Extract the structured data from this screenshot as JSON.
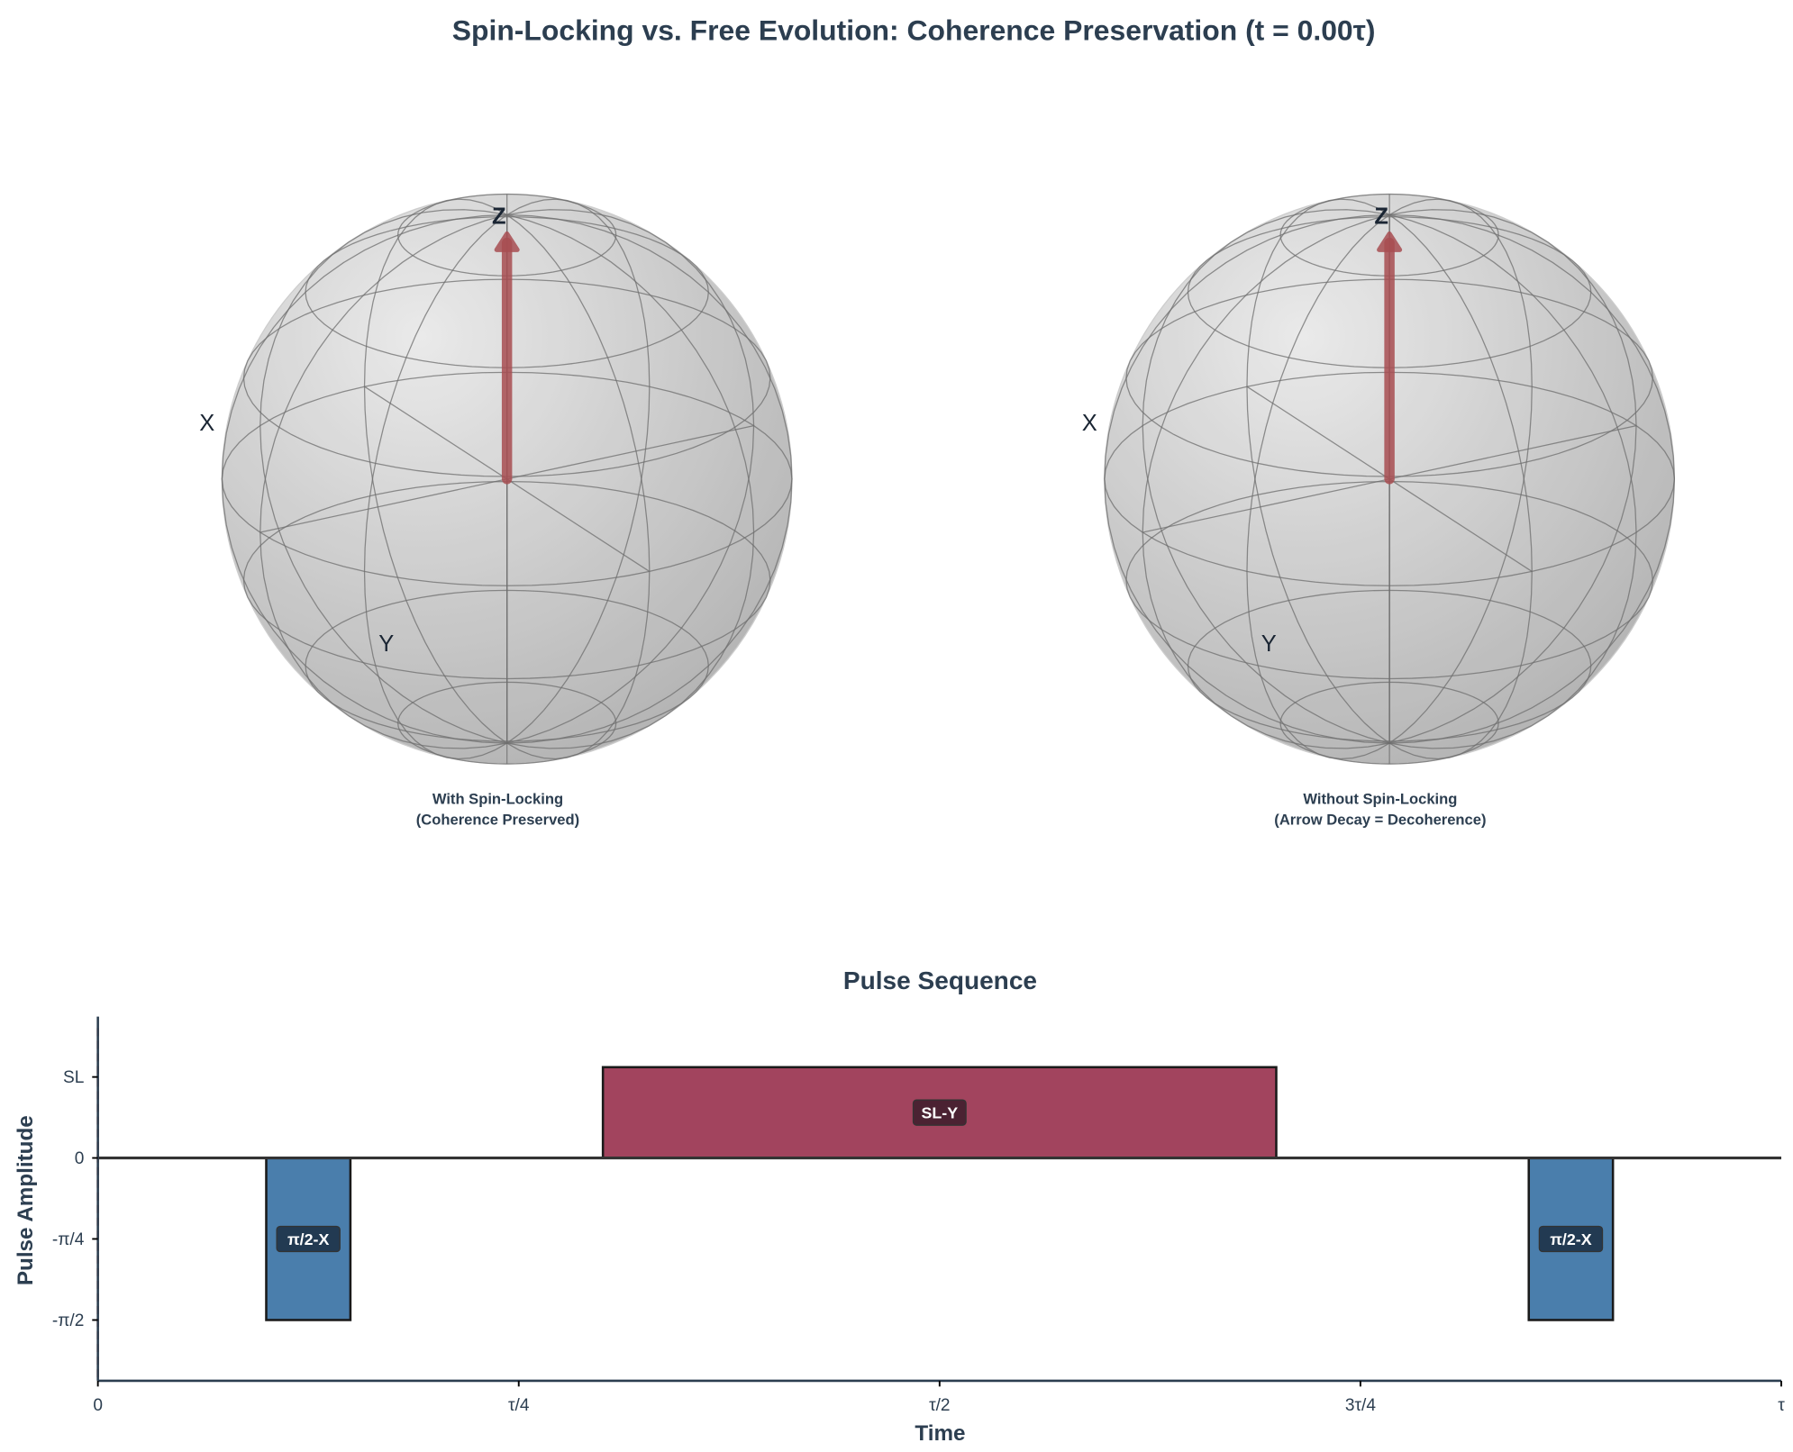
{
  "title": "Spin-Locking vs. Free Evolution: Coherence Preservation (t = 0.00τ)",
  "colors": {
    "text": "#2c3e50",
    "spin_lock": "#a2445e",
    "pulse_x": "#4a7eac",
    "arrow": "#a84e52",
    "marker": "#e05a3a"
  },
  "spheres": [
    {
      "caption_line1": "With Spin-Locking",
      "caption_line2": "(Coherence Preserved)",
      "axis_labels": {
        "x": "X",
        "y": "Y",
        "z": "Z"
      },
      "bloch_vector": [
        0,
        0,
        1
      ]
    },
    {
      "caption_line1": "Without Spin-Locking",
      "caption_line2": "(Arrow Decay = Decoherence)",
      "axis_labels": {
        "x": "X",
        "y": "Y",
        "z": "Z"
      },
      "bloch_vector": [
        0,
        0,
        1
      ]
    }
  ],
  "chart_data": {
    "type": "bar",
    "title": "Pulse Sequence",
    "xlabel": "Time",
    "ylabel": "Pulse Amplitude",
    "xlim": [
      0,
      1
    ],
    "ylim": [
      -2.16,
      1.37
    ],
    "xticks": [
      {
        "value": 0,
        "label": "0"
      },
      {
        "value": 0.25,
        "label": "τ/4"
      },
      {
        "value": 0.5,
        "label": "τ/2"
      },
      {
        "value": 0.75,
        "label": "3τ/4"
      },
      {
        "value": 1,
        "label": "τ"
      }
    ],
    "yticks": [
      {
        "value": 0.785,
        "label": "SL"
      },
      {
        "value": 0,
        "label": "0"
      },
      {
        "value": -0.785,
        "label": "-π/4"
      },
      {
        "value": -1.571,
        "label": "-π/2"
      }
    ],
    "pulses": [
      {
        "label": "π/2-X",
        "start": 0.1,
        "end": 0.15,
        "amplitude": -1.571,
        "color": "#4a7eac"
      },
      {
        "label": "SL-Y",
        "start": 0.3,
        "end": 0.7,
        "amplitude": 0.88,
        "color": "#a2445e"
      },
      {
        "label": "π/2-X",
        "start": 0.85,
        "end": 0.9,
        "amplitude": -1.571,
        "color": "#4a7eac"
      }
    ],
    "current_time": 0.0,
    "grid": false
  }
}
